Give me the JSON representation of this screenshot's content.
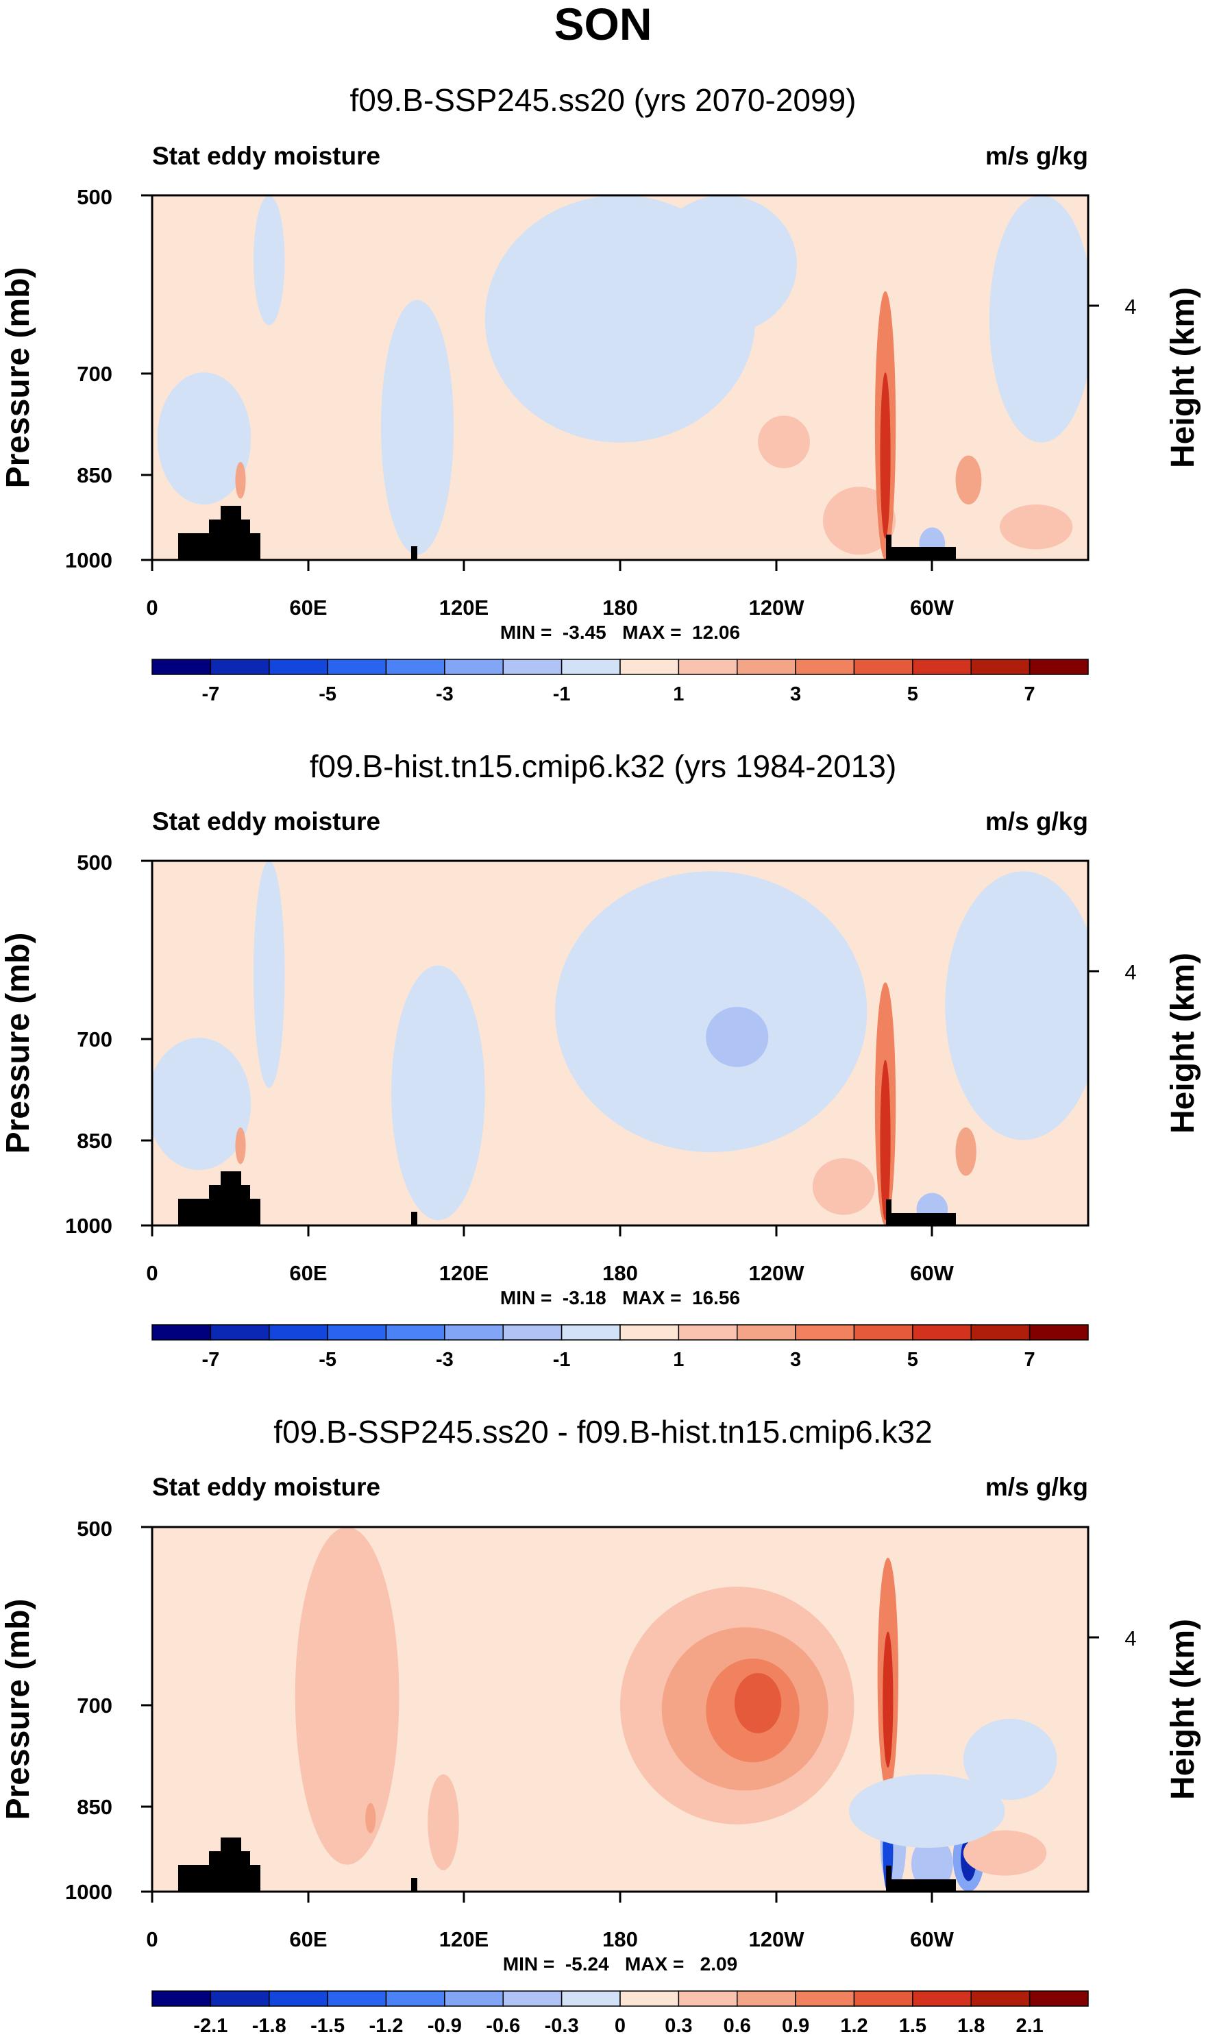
{
  "page_title": "SON",
  "colors": {
    "land": "#000000",
    "panel_background": "#fde5d5",
    "frame": "#000000"
  },
  "chart_data": [
    {
      "type": "contour",
      "title": "f09.B-SSP245.ss20 (yrs 2070-2099)",
      "left_label": "Stat eddy moisture",
      "right_label": "m/s g/kg",
      "ylabel": "Pressure (mb)",
      "ylabel_right": "Height (km)",
      "y_ticks": [
        "500",
        "700",
        "850",
        "1000"
      ],
      "y_tick_values": [
        500,
        700,
        850,
        1000
      ],
      "ylim": [
        1000,
        500
      ],
      "right_ticks": [
        "4"
      ],
      "right_tick_pressure": [
        616
      ],
      "x_ticks": [
        "0",
        "60E",
        "120E",
        "180",
        "120W",
        "60W"
      ],
      "x_tick_values": [
        0,
        60,
        120,
        180,
        240,
        300
      ],
      "xlim": [
        0,
        360
      ],
      "stats": "MIN =  -3.45   MAX =  12.06",
      "colorbar_labels": [
        "-7",
        "-5",
        "-3",
        "-1",
        "1",
        "3",
        "5",
        "7"
      ],
      "colorbar_colors": [
        "#00007f",
        "#0a28b4",
        "#1246dc",
        "#2864f0",
        "#4b82f5",
        "#82a5f5",
        "#afc3f5",
        "#d2e1f5",
        "#fde5d5",
        "#f9c3b0",
        "#f5a587",
        "#f0825f",
        "#e65a3c",
        "#d2321e",
        "#af1e0a",
        "#820000"
      ],
      "features": [
        {
          "type": "ellipse",
          "lon": 180,
          "p": 620,
          "rx": 52,
          "ry": 180,
          "level": 7
        },
        {
          "type": "ellipse",
          "lon": 220,
          "p": 560,
          "rx": 28,
          "ry": 90,
          "level": 7
        },
        {
          "type": "ellipse",
          "lon": 102,
          "p": 800,
          "rx": 14,
          "ry": 190,
          "level": 7
        },
        {
          "type": "ellipse",
          "lon": 45,
          "p": 560,
          "rx": 6,
          "ry": 80,
          "level": 7
        },
        {
          "type": "ellipse",
          "lon": 342,
          "p": 650,
          "rx": 20,
          "ry": 150,
          "level": 7
        },
        {
          "type": "ellipse",
          "lon": 20,
          "p": 800,
          "rx": 18,
          "ry": 100,
          "level": 7
        },
        {
          "type": "ellipse",
          "lon": 300,
          "p": 980,
          "rx": 5,
          "ry": 40,
          "level": 6
        },
        {
          "type": "ellipse",
          "lon": 243,
          "p": 800,
          "rx": 10,
          "ry": 40,
          "level": 9
        },
        {
          "type": "ellipse",
          "lon": 272,
          "p": 930,
          "rx": 14,
          "ry": 60,
          "level": 9
        },
        {
          "type": "ellipse",
          "lon": 340,
          "p": 940,
          "rx": 14,
          "ry": 40,
          "level": 9
        },
        {
          "type": "ellipse",
          "lon": 314,
          "p": 860,
          "rx": 5,
          "ry": 40,
          "level": 10
        },
        {
          "type": "ellipse",
          "lon": 282,
          "p": 800,
          "rx": 4,
          "ry": 200,
          "level": 11
        },
        {
          "type": "ellipse",
          "lon": 282,
          "p": 830,
          "rx": 2,
          "ry": 130,
          "level": 13
        },
        {
          "type": "ellipse",
          "lon": 34,
          "p": 860,
          "rx": 2,
          "ry": 30,
          "level": 10
        }
      ]
    },
    {
      "type": "contour",
      "title": "f09.B-hist.tn15.cmip6.k32 (yrs 1984-2013)",
      "left_label": "Stat eddy moisture",
      "right_label": "m/s g/kg",
      "ylabel": "Pressure (mb)",
      "ylabel_right": "Height (km)",
      "y_ticks": [
        "500",
        "700",
        "850",
        "1000"
      ],
      "y_tick_values": [
        500,
        700,
        850,
        1000
      ],
      "ylim": [
        1000,
        500
      ],
      "right_ticks": [
        "4"
      ],
      "right_tick_pressure": [
        616
      ],
      "x_ticks": [
        "0",
        "60E",
        "120E",
        "180",
        "120W",
        "60W"
      ],
      "x_tick_values": [
        0,
        60,
        120,
        180,
        240,
        300
      ],
      "xlim": [
        0,
        360
      ],
      "stats": "MIN =  -3.18   MAX =  16.56",
      "colorbar_labels": [
        "-7",
        "-5",
        "-3",
        "-1",
        "1",
        "3",
        "5",
        "7"
      ],
      "colorbar_colors": [
        "#00007f",
        "#0a28b4",
        "#1246dc",
        "#2864f0",
        "#4b82f5",
        "#82a5f5",
        "#afc3f5",
        "#d2e1f5",
        "#fde5d5",
        "#f9c3b0",
        "#f5a587",
        "#f0825f",
        "#e65a3c",
        "#d2321e",
        "#af1e0a",
        "#820000"
      ],
      "features": [
        {
          "type": "ellipse",
          "lon": 215,
          "p": 690,
          "rx": 60,
          "ry": 180,
          "level": 7
        },
        {
          "type": "ellipse",
          "lon": 225,
          "p": 700,
          "rx": 12,
          "ry": 40,
          "level": 6
        },
        {
          "type": "ellipse",
          "lon": 110,
          "p": 800,
          "rx": 18,
          "ry": 190,
          "level": 7
        },
        {
          "type": "ellipse",
          "lon": 45,
          "p": 620,
          "rx": 6,
          "ry": 150,
          "level": 7
        },
        {
          "type": "ellipse",
          "lon": 335,
          "p": 680,
          "rx": 30,
          "ry": 170,
          "level": 7
        },
        {
          "type": "ellipse",
          "lon": 18,
          "p": 800,
          "rx": 20,
          "ry": 100,
          "level": 7
        },
        {
          "type": "ellipse",
          "lon": 300,
          "p": 980,
          "rx": 6,
          "ry": 40,
          "level": 6
        },
        {
          "type": "ellipse",
          "lon": 266,
          "p": 930,
          "rx": 12,
          "ry": 50,
          "level": 9
        },
        {
          "type": "ellipse",
          "lon": 313,
          "p": 870,
          "rx": 4,
          "ry": 40,
          "level": 10
        },
        {
          "type": "ellipse",
          "lon": 282,
          "p": 830,
          "rx": 4,
          "ry": 200,
          "level": 11
        },
        {
          "type": "ellipse",
          "lon": 282,
          "p": 860,
          "rx": 2,
          "ry": 130,
          "level": 13
        },
        {
          "type": "ellipse",
          "lon": 34,
          "p": 860,
          "rx": 2,
          "ry": 30,
          "level": 10
        }
      ]
    },
    {
      "type": "contour",
      "title": "f09.B-SSP245.ss20 - f09.B-hist.tn15.cmip6.k32",
      "left_label": "Stat eddy moisture",
      "right_label": "m/s g/kg",
      "ylabel": "Pressure (mb)",
      "ylabel_right": "Height (km)",
      "y_ticks": [
        "500",
        "700",
        "850",
        "1000"
      ],
      "y_tick_values": [
        500,
        700,
        850,
        1000
      ],
      "ylim": [
        1000,
        500
      ],
      "right_ticks": [
        "4"
      ],
      "right_tick_pressure": [
        616
      ],
      "x_ticks": [
        "0",
        "60E",
        "120E",
        "180",
        "120W",
        "60W"
      ],
      "x_tick_values": [
        0,
        60,
        120,
        180,
        240,
        300
      ],
      "xlim": [
        0,
        360
      ],
      "stats": "MIN =  -5.24   MAX =   2.09",
      "colorbar_labels": [
        "-2.1",
        "-1.8",
        "-1.5",
        "-1.2",
        "-0.9",
        "-0.6",
        "-0.3",
        "0",
        "0.3",
        "0.6",
        "0.9",
        "1.2",
        "1.5",
        "1.8",
        "2.1"
      ],
      "colorbar_colors": [
        "#00007f",
        "#0a28b4",
        "#1246dc",
        "#2864f0",
        "#4b82f5",
        "#82a5f5",
        "#afc3f5",
        "#d2e1f5",
        "#fde5d5",
        "#f9c3b0",
        "#f5a587",
        "#f0825f",
        "#e65a3c",
        "#d2321e",
        "#af1e0a",
        "#820000"
      ],
      "features": [
        {
          "type": "ellipse",
          "lon": 225,
          "p": 720,
          "rx": 45,
          "ry": 160,
          "level": 9
        },
        {
          "type": "ellipse",
          "lon": 228,
          "p": 715,
          "rx": 32,
          "ry": 110,
          "level": 10
        },
        {
          "type": "ellipse",
          "lon": 231,
          "p": 712,
          "rx": 18,
          "ry": 70,
          "level": 11
        },
        {
          "type": "ellipse",
          "lon": 233,
          "p": 700,
          "rx": 9,
          "ry": 40,
          "level": 12
        },
        {
          "type": "ellipse",
          "lon": 75,
          "p": 700,
          "rx": 20,
          "ry": 250,
          "level": 9
        },
        {
          "type": "ellipse",
          "lon": 112,
          "p": 880,
          "rx": 6,
          "ry": 80,
          "level": 9
        },
        {
          "type": "ellipse",
          "lon": 84,
          "p": 870,
          "rx": 2,
          "ry": 25,
          "level": 10
        },
        {
          "type": "ellipse",
          "lon": 283,
          "p": 680,
          "rx": 4,
          "ry": 150,
          "level": 11
        },
        {
          "type": "ellipse",
          "lon": 283,
          "p": 700,
          "rx": 2,
          "ry": 90,
          "level": 13
        },
        {
          "type": "ellipse",
          "lon": 285,
          "p": 920,
          "rx": 5,
          "ry": 90,
          "level": 6
        },
        {
          "type": "ellipse",
          "lon": 283,
          "p": 930,
          "rx": 2,
          "ry": 80,
          "level": 2
        },
        {
          "type": "ellipse",
          "lon": 314,
          "p": 940,
          "rx": 6,
          "ry": 60,
          "level": 5
        },
        {
          "type": "ellipse",
          "lon": 314,
          "p": 940,
          "rx": 3,
          "ry": 40,
          "level": 1
        },
        {
          "type": "ellipse",
          "lon": 300,
          "p": 950,
          "rx": 8,
          "ry": 50,
          "level": 6
        },
        {
          "type": "ellipse",
          "lon": 328,
          "p": 930,
          "rx": 16,
          "ry": 40,
          "level": 9
        },
        {
          "type": "ellipse",
          "lon": 298,
          "p": 860,
          "rx": 30,
          "ry": 60,
          "level": 7
        },
        {
          "type": "ellipse",
          "lon": 330,
          "p": 780,
          "rx": 18,
          "ry": 60,
          "level": 7
        }
      ]
    }
  ]
}
